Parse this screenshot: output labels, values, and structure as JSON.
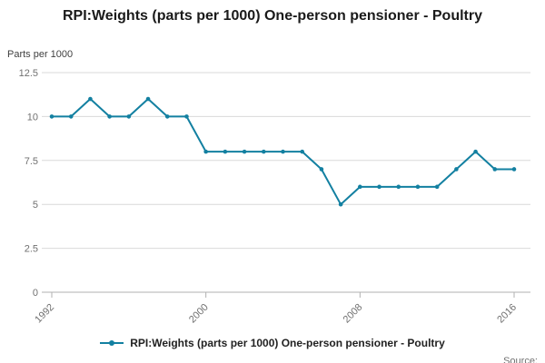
{
  "title": "RPI:Weights (parts per 1000) One-person pensioner - Poultry",
  "unit_label": "Parts per 1000",
  "source_label": "Source:",
  "legend": {
    "label": "RPI:Weights (parts per 1000) One-person pensioner - Poultry"
  },
  "colors": {
    "line": "#1380A1",
    "grid": "#d9d9d9",
    "axis_line": "#b0b0b0",
    "axis_text": "#707070",
    "title_text": "#1a1a1a"
  },
  "chart_data": {
    "type": "line",
    "title": "RPI:Weights (parts per 1000) One-person pensioner - Poultry",
    "xlabel": "",
    "ylabel": "Parts per 1000",
    "x": [
      1992,
      1993,
      1994,
      1995,
      1996,
      1997,
      1998,
      1999,
      2000,
      2001,
      2002,
      2003,
      2004,
      2005,
      2006,
      2007,
      2008,
      2009,
      2010,
      2011,
      2012,
      2013,
      2014,
      2015,
      2016
    ],
    "values": [
      10,
      10,
      11,
      10,
      10,
      11,
      10,
      10,
      8,
      8,
      8,
      8,
      8,
      8,
      7,
      5,
      6,
      6,
      6,
      6,
      6,
      7,
      8,
      7,
      7
    ],
    "series_name": "RPI:Weights (parts per 1000) One-person pensioner - Poultry",
    "xlim": [
      1992,
      2016
    ],
    "ylim": [
      0,
      12.5
    ],
    "xticks": [
      1992,
      2000,
      2008,
      2016
    ],
    "yticks": [
      0,
      2.5,
      5,
      7.5,
      10,
      12.5
    ],
    "grid": true,
    "legend_position": "bottom",
    "markers": true
  }
}
